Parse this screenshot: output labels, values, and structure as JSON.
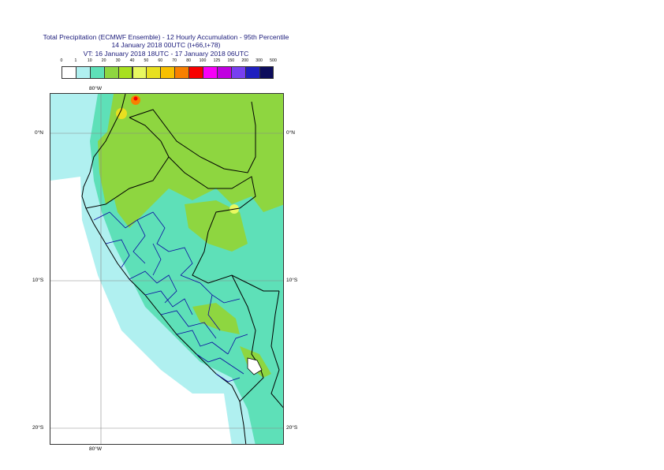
{
  "title": {
    "line1": "Total Precipitation (ECMWF Ensemble) - 12 Hourly Accumulation - 95th Percentile",
    "line2": "14 January 2018 00UTC (t+66,t+78)",
    "line3": "VT: 16 January 2018 18UTC - 17 January 2018 06UTC"
  },
  "legend": {
    "labels": [
      "0",
      "1",
      "10",
      "20",
      "30",
      "40",
      "50",
      "60",
      "70",
      "80",
      "100",
      "125",
      "150",
      "200",
      "300",
      "500"
    ],
    "colors": [
      "#ffffff",
      "#b0f0f0",
      "#5ee0b8",
      "#8ed640",
      "#a8e020",
      "#e8f860",
      "#e8e020",
      "#f8c000",
      "#f88000",
      "#f80000",
      "#f800f8",
      "#c000e0",
      "#7840f0",
      "#2020c0",
      "#0c0c5c"
    ]
  },
  "grid": {
    "lon_top": "80°W",
    "lon_bottom": "80°W",
    "lat_labels": [
      "0°N",
      "10°S",
      "20°S"
    ]
  },
  "map_colors": {
    "light_cyan": "#b0f0f0",
    "teal": "#5ee0b8",
    "green": "#8ed640",
    "bright_green": "#a8e020",
    "yellow": "#e8e020",
    "orange": "#f88000",
    "red": "#f80000",
    "country_border": "#000000",
    "region_border": "#0a0aa0"
  }
}
